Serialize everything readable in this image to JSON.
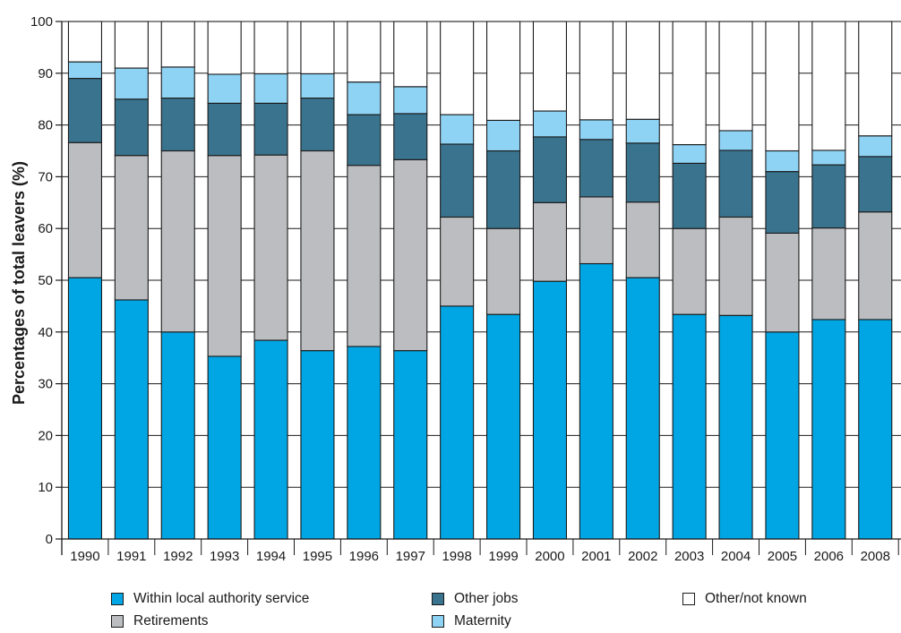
{
  "chart_data": {
    "type": "bar",
    "stacked": true,
    "ylabel": "Percentages of total leavers (%)",
    "xlabel": "",
    "ylim": [
      0,
      100
    ],
    "yticks": [
      0,
      10,
      20,
      30,
      40,
      50,
      60,
      70,
      80,
      90,
      100
    ],
    "grid": true,
    "legend_position": "bottom",
    "categories": [
      "1990",
      "1991",
      "1992",
      "1993",
      "1994",
      "1995",
      "1996",
      "1997",
      "1998",
      "1999",
      "2000",
      "2001",
      "2002",
      "2003",
      "2004",
      "2005",
      "2006",
      "2008"
    ],
    "series": [
      {
        "name": "Within local authority service",
        "color": "#00a6e4",
        "values": [
          50.5,
          46.2,
          40,
          35.3,
          38.4,
          36.4,
          37.2,
          36.4,
          45,
          43.4,
          49.8,
          53.2,
          50.5,
          43.4,
          43.2,
          40,
          42.4,
          42.4
        ]
      },
      {
        "name": "Retirements",
        "color": "#bcbdc0",
        "values": [
          26.1,
          27.9,
          35,
          38.8,
          35.8,
          38.6,
          35,
          36.9,
          17.2,
          16.6,
          15.2,
          12.9,
          14.6,
          16.6,
          19,
          19.1,
          17.7,
          20.8
        ]
      },
      {
        "name": "Other jobs",
        "color": "#3a738e",
        "values": [
          12.4,
          10.9,
          10.2,
          10.1,
          10,
          10.2,
          9.8,
          8.9,
          14.1,
          15,
          12.7,
          11.1,
          11.4,
          12.6,
          12.9,
          11.9,
          12.2,
          10.7
        ]
      },
      {
        "name": "Maternity",
        "color": "#8fd3f4",
        "values": [
          3.2,
          6,
          6,
          5.6,
          5.7,
          4.7,
          6.3,
          5.2,
          5.7,
          5.9,
          5,
          3.8,
          4.6,
          3.6,
          3.8,
          4,
          2.8,
          4
        ]
      },
      {
        "name": "Other/not known",
        "color": "#ffffff",
        "values": [
          7.8,
          9,
          8.8,
          10.2,
          10.1,
          10.1,
          11.7,
          12.6,
          18,
          19.1,
          17.3,
          19,
          18.9,
          23.8,
          21.1,
          25,
          24.9,
          22.1
        ]
      }
    ]
  }
}
